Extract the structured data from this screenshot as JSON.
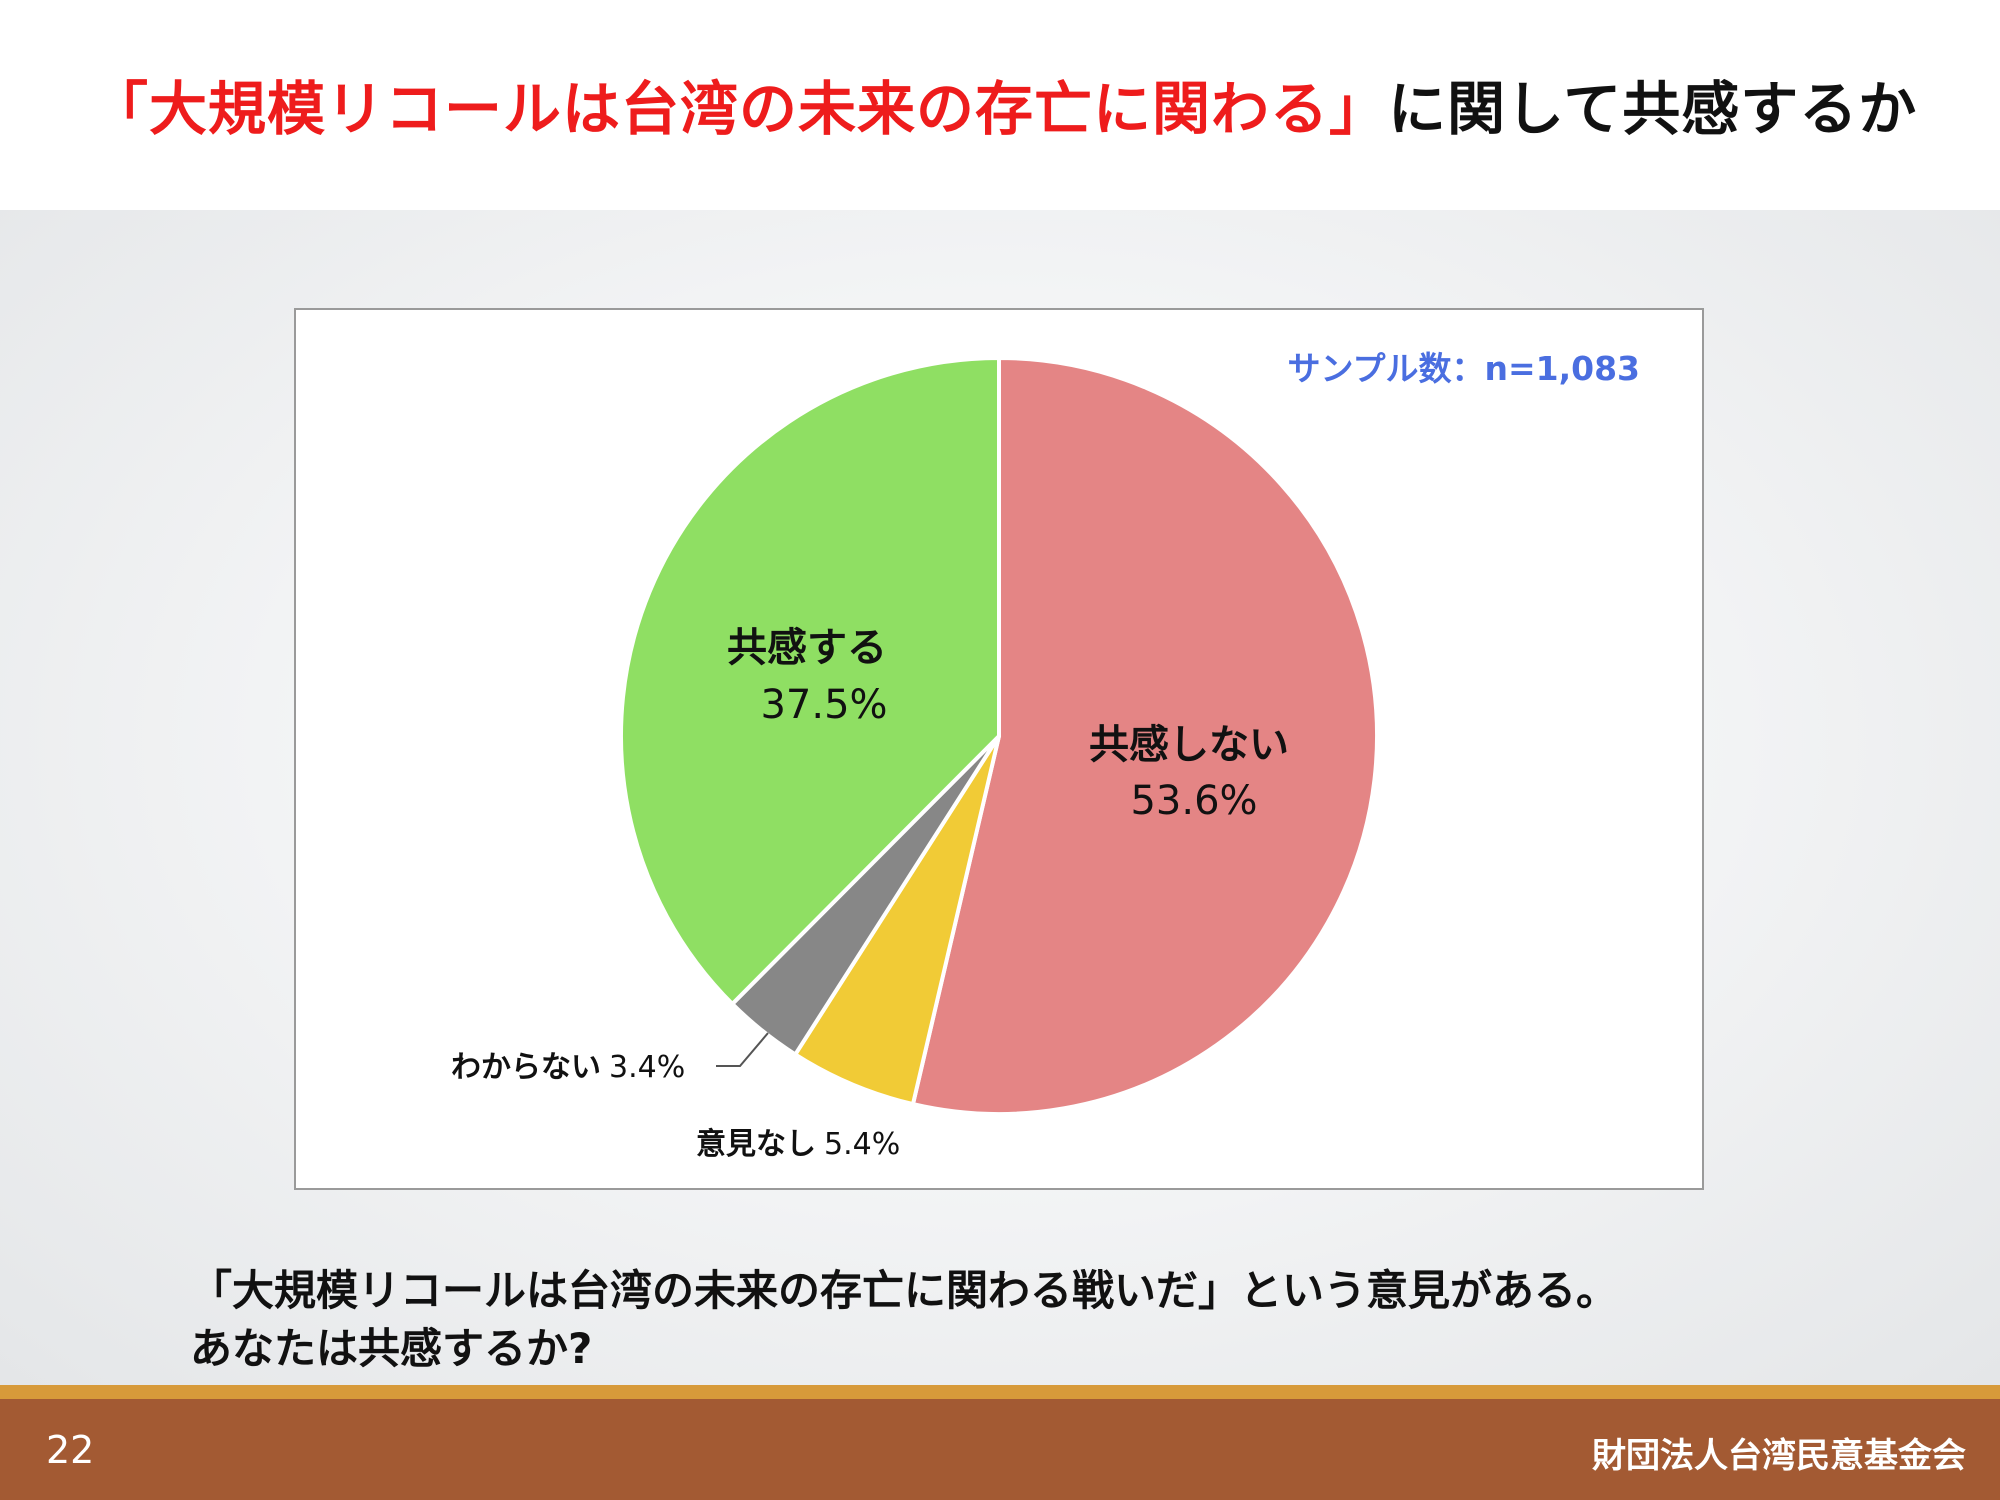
{
  "header": {
    "title_highlight": "「大規模リコールは台湾の未来の存亡に関わる」",
    "title_rest": "に関して共感するか"
  },
  "chart_data": {
    "type": "pie",
    "sample_note": "サンプル数：n=1,083",
    "slices": [
      {
        "label": "共感しない",
        "value": 53.6,
        "value_label": "53.6%",
        "color": "#e48585"
      },
      {
        "label": "意見なし",
        "value": 5.4,
        "value_label": "5.4%",
        "color": "#f1cb36"
      },
      {
        "label": "わからない",
        "value": 3.4,
        "value_label": "3.4%",
        "color": "#878787"
      },
      {
        "label": "共感する",
        "value": 37.5,
        "value_label": "37.5%",
        "color": "#8fdf63"
      }
    ]
  },
  "question": {
    "line1": "「大規模リコールは台湾の未来の存亡に関わる戦いだ」という意見がある。",
    "line2": "あなたは共感するか?"
  },
  "footer": {
    "page_number": "22",
    "organization": "財団法人台湾民意基金会"
  }
}
